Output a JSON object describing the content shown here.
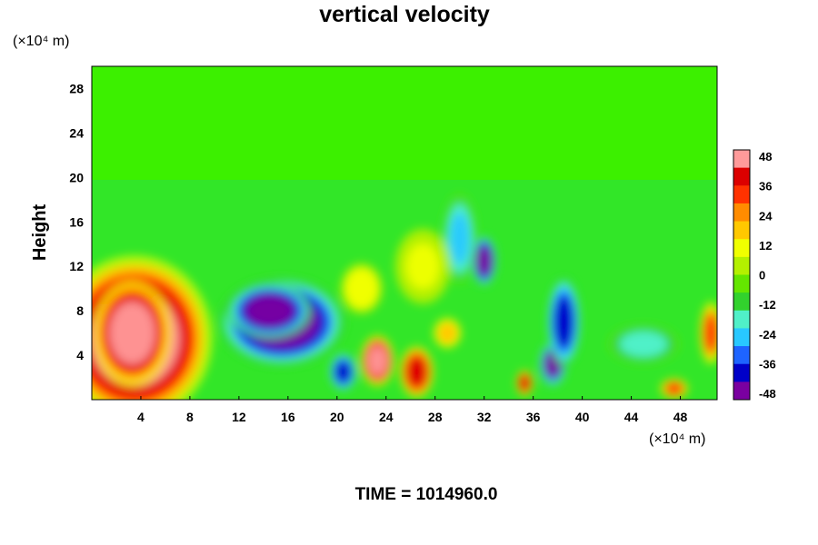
{
  "chart_data": {
    "type": "heatmap",
    "title": "vertical velocity",
    "ylabel": "Height",
    "xlabel": "",
    "x_unit": "(×10⁴ m)",
    "y_unit": "(×10⁴ m)",
    "xlim": [
      0,
      51
    ],
    "ylim": [
      0,
      30
    ],
    "x_ticks": [
      4,
      8,
      12,
      16,
      20,
      24,
      28,
      32,
      36,
      40,
      44,
      48
    ],
    "y_ticks": [
      4,
      8,
      12,
      16,
      20,
      24,
      28
    ],
    "colorbar": {
      "ticks": [
        48,
        36,
        24,
        12,
        0,
        -12,
        -24,
        -36,
        -48
      ],
      "range": [
        -48,
        48
      ],
      "colors": [
        "#7a00a0",
        "#0000c8",
        "#1e64ff",
        "#28c8ff",
        "#50f0c8",
        "#32d22d",
        "#64e600",
        "#b4f000",
        "#f0ff00",
        "#ffc800",
        "#ff8c00",
        "#ff3200",
        "#dc0000",
        "#ff9a9a"
      ]
    },
    "background_value": 0,
    "cells": [
      {
        "x": 3.5,
        "y": 5.5,
        "rx": 5.5,
        "ry": 6.5,
        "v": 48
      },
      {
        "x": 3.3,
        "y": 6.0,
        "rx": 2.8,
        "ry": 4.2,
        "v": 48
      },
      {
        "x": 15.5,
        "y": 7.0,
        "rx": 4.5,
        "ry": 3.5,
        "v": -48
      },
      {
        "x": 14.5,
        "y": 8.0,
        "rx": 3.0,
        "ry": 2.2,
        "v": -48
      },
      {
        "x": 20.5,
        "y": 2.5,
        "rx": 1.0,
        "ry": 1.5,
        "v": -40
      },
      {
        "x": 23.3,
        "y": 3.5,
        "rx": 1.2,
        "ry": 2.0,
        "v": 48
      },
      {
        "x": 26.5,
        "y": 2.5,
        "rx": 1.2,
        "ry": 2.0,
        "v": 36
      },
      {
        "x": 32.0,
        "y": 12.5,
        "rx": 0.9,
        "ry": 2.0,
        "v": -48
      },
      {
        "x": 30.0,
        "y": 14.5,
        "rx": 1.2,
        "ry": 3.5,
        "v": -24
      },
      {
        "x": 37.6,
        "y": 3.2,
        "rx": 1.0,
        "ry": 1.8,
        "v": -44
      },
      {
        "x": 38.5,
        "y": 7.0,
        "rx": 1.2,
        "ry": 3.5,
        "v": -36
      },
      {
        "x": 35.3,
        "y": 1.5,
        "rx": 0.6,
        "ry": 1.0,
        "v": 40
      },
      {
        "x": 45.0,
        "y": 5.0,
        "rx": 2.5,
        "ry": 1.5,
        "v": -18
      },
      {
        "x": 50.5,
        "y": 6.0,
        "rx": 0.8,
        "ry": 2.5,
        "v": 30
      },
      {
        "x": 47.5,
        "y": 1.0,
        "rx": 1.0,
        "ry": 0.8,
        "v": 30
      },
      {
        "x": 22.0,
        "y": 10.0,
        "rx": 1.5,
        "ry": 2.0,
        "v": 12
      },
      {
        "x": 29.0,
        "y": 6.0,
        "rx": 1.0,
        "ry": 1.2,
        "v": 20
      },
      {
        "x": 27.0,
        "y": 12.0,
        "rx": 2.0,
        "ry": 3.0,
        "v": 8
      }
    ]
  },
  "time_label": "TIME = 1014960.0"
}
